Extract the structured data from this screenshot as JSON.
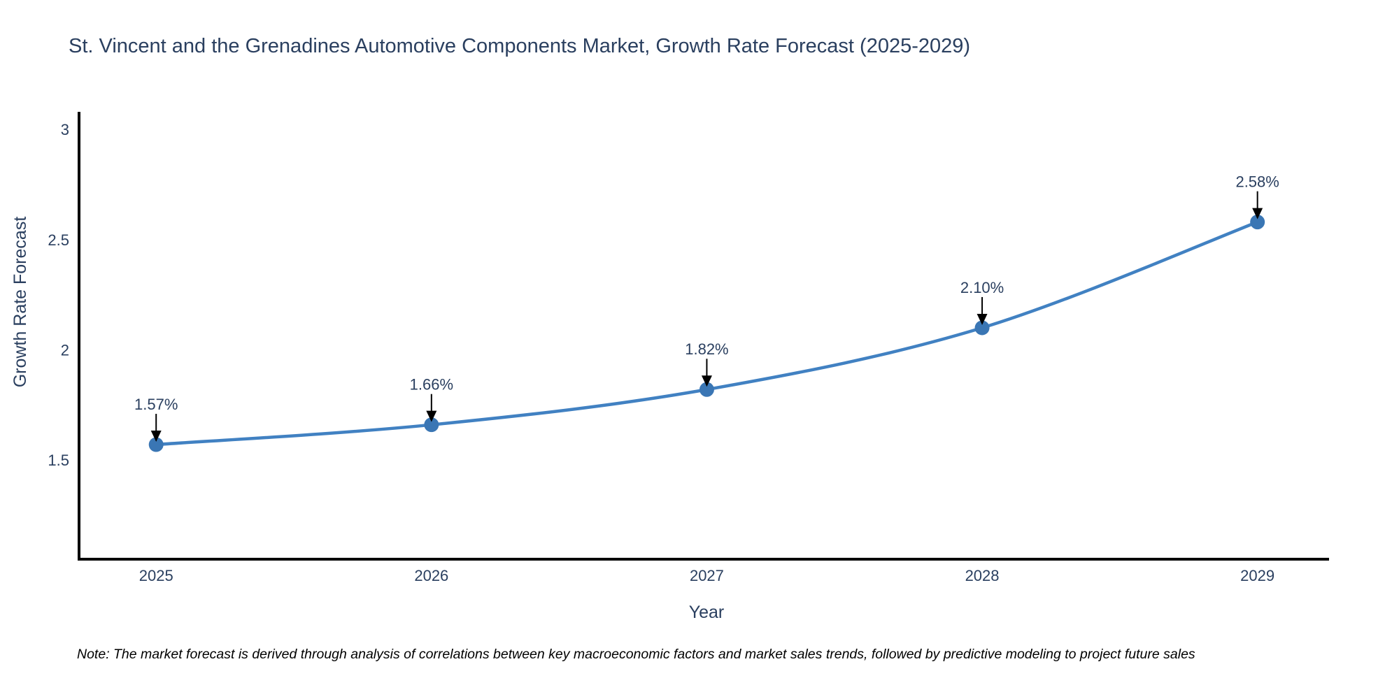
{
  "page": {
    "background": "#ffffff"
  },
  "chart_data": {
    "type": "line",
    "title": "St. Vincent and the Grenadines Automotive Components Market, Growth Rate Forecast (2025-2029)",
    "xlabel": "Year",
    "ylabel": "Growth Rate Forecast",
    "x": [
      2025,
      2026,
      2027,
      2028,
      2029
    ],
    "series": [
      {
        "name": "Growth Rate Forecast",
        "values": [
          1.57,
          1.66,
          1.82,
          2.1,
          2.58
        ]
      }
    ],
    "point_labels": [
      "1.57%",
      "1.66%",
      "1.82%",
      "2.10%",
      "2.58%"
    ],
    "xtick_labels": [
      "2025",
      "2026",
      "2027",
      "2028",
      "2029"
    ],
    "yticks": [
      1.5,
      2,
      2.5,
      3
    ],
    "ytick_labels": [
      "1.5",
      "2",
      "2.5",
      "3"
    ],
    "xlim": [
      2024.72,
      2029.26
    ],
    "ylim": [
      1.05,
      3.08
    ],
    "grid": false,
    "legend_position": "none",
    "line_shape": "spline",
    "annotation_arrows": true,
    "colors": {
      "line": "#4181c2",
      "marker": "#3a76b4",
      "axis": "#000000",
      "text": "#2a3f5f",
      "annotation_arrow": "#000000",
      "note_text": "#000000"
    },
    "note": "Note: The market forecast is derived through analysis of correlations between key macroeconomic factors and market sales trends, followed by predictive modeling to project future sales"
  }
}
